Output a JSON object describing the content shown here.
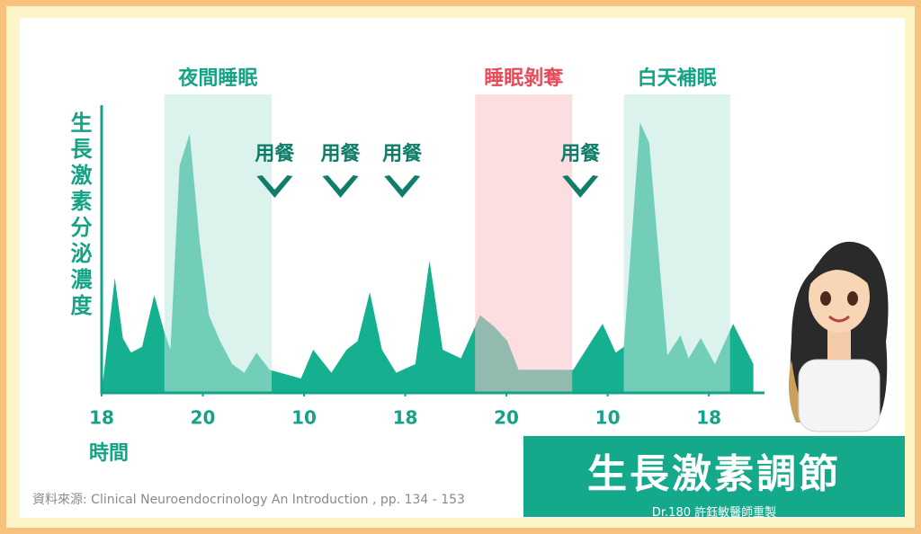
{
  "chart_data": {
    "type": "area",
    "y_label": "生長激素分泌濃度",
    "x_label": "時間",
    "x": [
      0,
      0.04,
      0.13,
      0.21,
      0.29,
      0.4,
      0.52,
      0.62,
      0.68,
      0.77,
      0.87,
      0.97,
      1.06,
      1.17,
      1.29,
      1.41,
      1.53,
      1.66,
      1.97,
      2.09,
      2.27,
      2.42,
      2.53,
      2.65,
      2.77,
      2.91,
      3.1,
      3.24,
      3.37,
      3.55,
      3.74,
      3.88,
      4.01,
      4.12,
      4.66,
      4.84,
      4.95,
      5.08,
      5.16,
      5.32,
      5.41,
      5.59,
      5.72,
      5.8,
      5.92,
      6.06,
      6.24,
      6.44,
      6.44
    ],
    "values": [
      0,
      12,
      40,
      19,
      14,
      16,
      34,
      21,
      15,
      79,
      90,
      52,
      27,
      18,
      10,
      7,
      14,
      8,
      5,
      15,
      7,
      15,
      18,
      35,
      15,
      7,
      10,
      46,
      15,
      12,
      27,
      23,
      18,
      8,
      8,
      18,
      24,
      14,
      16,
      94,
      87,
      13,
      20,
      12,
      19,
      10,
      24,
      10,
      0
    ],
    "color": "#14b08f",
    "xlim": [
      0,
      6.55
    ],
    "ylim": [
      0,
      100
    ],
    "xticks": [
      {
        "value": 0,
        "label": "18"
      },
      {
        "value": 1,
        "label": "20"
      },
      {
        "value": 2,
        "label": "10"
      },
      {
        "value": 3,
        "label": "18"
      },
      {
        "value": 4,
        "label": "20"
      },
      {
        "value": 5,
        "label": "10"
      },
      {
        "value": 6,
        "label": "18"
      }
    ],
    "bands": [
      {
        "label": "夜間睡眠",
        "start": 0.62,
        "end": 1.68,
        "color": "#bfe8dd",
        "text_color": "#14a386"
      },
      {
        "label": "睡眠剝奪",
        "start": 3.69,
        "end": 4.65,
        "color": "#f9c3c8",
        "text_color": "#e84a5a"
      },
      {
        "label": "白天補眠",
        "start": 5.16,
        "end": 6.21,
        "color": "#bfe8dd",
        "text_color": "#14a386"
      }
    ],
    "annotations": [
      {
        "text": "用餐",
        "x": 1.71
      },
      {
        "text": "用餐",
        "x": 2.36
      },
      {
        "text": "用餐",
        "x": 2.97
      },
      {
        "text": "用餐",
        "x": 4.73
      }
    ]
  },
  "title": "生長激素調節",
  "subtitle": "Dr.180 許鈺敏醫師重製",
  "source": "資料來源: Clinical Neuroendocrinology An Introduction , pp. 134 - 153"
}
